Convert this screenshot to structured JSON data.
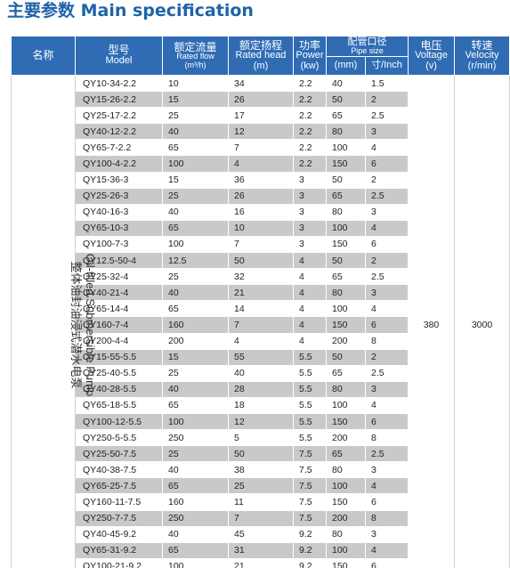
{
  "title": "主要参数 Main specification",
  "header": {
    "name_cn": "名称",
    "model_cn": "型号",
    "model_en": "Model",
    "flow_cn": "额定流量",
    "flow_en": "Rated flow",
    "flow_unit": "(m³/h)",
    "head_cn": "额定扬程",
    "head_en": "Rated head",
    "head_unit": "(m)",
    "power_cn": "功率",
    "power_en": "Power",
    "power_unit": "(kw)",
    "pipe_cn": "配管口径",
    "pipe_en": "Pipe size",
    "pipe_mm": "(mm)",
    "pipe_inch": "寸/Inch",
    "voltage_cn": "电压",
    "voltage_en": "Voltage",
    "voltage_unit": "(v)",
    "velocity_cn": "转速",
    "velocity_en": "Velocity",
    "velocity_unit": "(r/min)"
  },
  "product_name_en": "Oil-filled Submersible Pump",
  "product_name_cn": "整体油封油浸式潜水电泵",
  "voltage": "380",
  "velocity": "3000",
  "rows": [
    {
      "model": "QY10-34-2.2",
      "flow": "10",
      "head": "34",
      "power": "2.2",
      "mm": "40",
      "inch": "1.5"
    },
    {
      "model": "QY15-26-2.2",
      "flow": "15",
      "head": "26",
      "power": "2.2",
      "mm": "50",
      "inch": "2"
    },
    {
      "model": "QY25-17-2.2",
      "flow": "25",
      "head": "17",
      "power": "2.2",
      "mm": "65",
      "inch": "2.5"
    },
    {
      "model": "QY40-12-2.2",
      "flow": "40",
      "head": "12",
      "power": "2.2",
      "mm": "80",
      "inch": "3"
    },
    {
      "model": "QY65-7-2.2",
      "flow": "65",
      "head": "7",
      "power": "2.2",
      "mm": "100",
      "inch": "4"
    },
    {
      "model": "QY100-4-2.2",
      "flow": "100",
      "head": "4",
      "power": "2.2",
      "mm": "150",
      "inch": "6"
    },
    {
      "model": "QY15-36-3",
      "flow": "15",
      "head": "36",
      "power": "3",
      "mm": "50",
      "inch": "2"
    },
    {
      "model": "QY25-26-3",
      "flow": "25",
      "head": "26",
      "power": "3",
      "mm": "65",
      "inch": "2.5"
    },
    {
      "model": "QY40-16-3",
      "flow": "40",
      "head": "16",
      "power": "3",
      "mm": "80",
      "inch": "3"
    },
    {
      "model": "QY65-10-3",
      "flow": "65",
      "head": "10",
      "power": "3",
      "mm": "100",
      "inch": "4"
    },
    {
      "model": "QY100-7-3",
      "flow": "100",
      "head": "7",
      "power": "3",
      "mm": "150",
      "inch": "6"
    },
    {
      "model": "QY12.5-50-4",
      "flow": "12.5",
      "head": "50",
      "power": "4",
      "mm": "50",
      "inch": "2"
    },
    {
      "model": "QY25-32-4",
      "flow": "25",
      "head": "32",
      "power": "4",
      "mm": "65",
      "inch": "2.5"
    },
    {
      "model": "QY40-21-4",
      "flow": "40",
      "head": "21",
      "power": "4",
      "mm": "80",
      "inch": "3"
    },
    {
      "model": "QY65-14-4",
      "flow": "65",
      "head": "14",
      "power": "4",
      "mm": "100",
      "inch": "4"
    },
    {
      "model": "QY160-7-4",
      "flow": "160",
      "head": "7",
      "power": "4",
      "mm": "150",
      "inch": "6"
    },
    {
      "model": "QY200-4-4",
      "flow": "200",
      "head": "4",
      "power": "4",
      "mm": "200",
      "inch": "8"
    },
    {
      "model": "QY15-55-5.5",
      "flow": "15",
      "head": "55",
      "power": "5.5",
      "mm": "50",
      "inch": "2"
    },
    {
      "model": "QY25-40-5.5",
      "flow": "25",
      "head": "40",
      "power": "5.5",
      "mm": "65",
      "inch": "2.5"
    },
    {
      "model": "QY40-28-5.5",
      "flow": "40",
      "head": "28",
      "power": "5.5",
      "mm": "80",
      "inch": "3"
    },
    {
      "model": "QY65-18-5.5",
      "flow": "65",
      "head": "18",
      "power": "5.5",
      "mm": "100",
      "inch": "4"
    },
    {
      "model": "QY100-12-5.5",
      "flow": "100",
      "head": "12",
      "power": "5.5",
      "mm": "150",
      "inch": "6"
    },
    {
      "model": "QY250-5-5.5",
      "flow": "250",
      "head": "5",
      "power": "5.5",
      "mm": "200",
      "inch": "8"
    },
    {
      "model": "QY25-50-7.5",
      "flow": "25",
      "head": "50",
      "power": "7.5",
      "mm": "65",
      "inch": "2.5"
    },
    {
      "model": "QY40-38-7.5",
      "flow": "40",
      "head": "38",
      "power": "7.5",
      "mm": "80",
      "inch": "3"
    },
    {
      "model": "QY65-25-7.5",
      "flow": "65",
      "head": "25",
      "power": "7.5",
      "mm": "100",
      "inch": "4"
    },
    {
      "model": "QY160-11-7.5",
      "flow": "160",
      "head": "11",
      "power": "7.5",
      "mm": "150",
      "inch": "6"
    },
    {
      "model": "QY250-7-7.5",
      "flow": "250",
      "head": "7",
      "power": "7.5",
      "mm": "200",
      "inch": "8"
    },
    {
      "model": "QY40-45-9.2",
      "flow": "40",
      "head": "45",
      "power": "9.2",
      "mm": "80",
      "inch": "3"
    },
    {
      "model": "QY65-31-9.2",
      "flow": "65",
      "head": "31",
      "power": "9.2",
      "mm": "100",
      "inch": "4"
    },
    {
      "model": "QY100-21-9.2",
      "flow": "100",
      "head": "21",
      "power": "9.2",
      "mm": "150",
      "inch": "6"
    }
  ]
}
